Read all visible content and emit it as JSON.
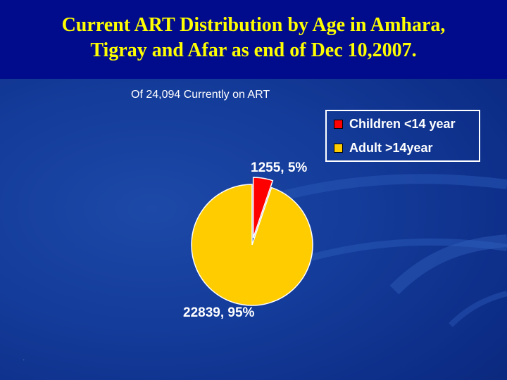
{
  "title": "Current ART Distribution by Age in Amhara,\nTigray and Afar  as end of Dec 10,2007.",
  "colors": {
    "title": "#ffff00",
    "children": "#ff0000",
    "adults": "#ffcc00",
    "background": "#143c9a"
  },
  "chart_data": {
    "type": "pie",
    "subtitle": "Of 24,094 Currently on ART",
    "slices": [
      {
        "name": "Children <14 year",
        "value": 1255,
        "percent": 5,
        "label": "1255, 5%",
        "color": "#ff0000",
        "exploded": true
      },
      {
        "name": "Adult >14year",
        "value": 22839,
        "percent": 95,
        "label": "22839, 95%",
        "color": "#ffcc00",
        "exploded": false
      }
    ],
    "legend": [
      {
        "label": "Children <14 year",
        "color": "#ff0000"
      },
      {
        "label": "Adult >14year",
        "color": "#ffcc00"
      }
    ],
    "legend_position": "top-right"
  }
}
